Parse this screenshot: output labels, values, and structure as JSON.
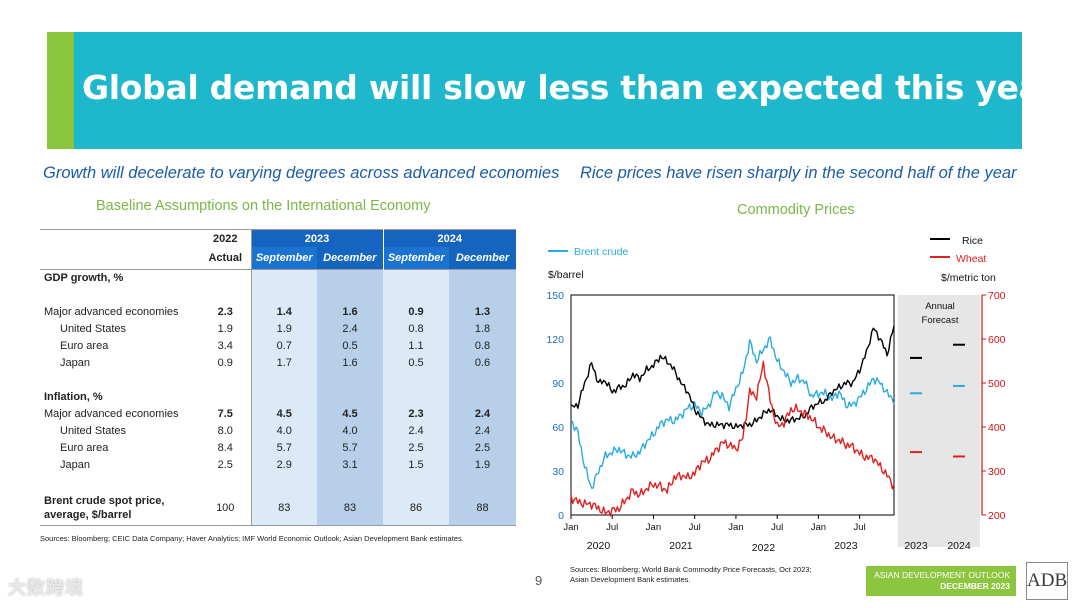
{
  "slide": {
    "title": "Global demand will slow less than expected this year",
    "left_subhead": "Growth will decelerate to varying degrees across advanced economies",
    "right_subhead": "Rice prices have risen sharply in the second half of the year",
    "page_number": "9",
    "brand_line1": "ASIAN DEVELOPMENT OUTLOOK",
    "brand_line2": "DECEMBER 2023",
    "logo": "ADB",
    "watermark": "大数跨境",
    "colors": {
      "banner": "#1fb7cc",
      "banner_accent": "#8cc63f",
      "subhead": "#1a5ca8",
      "green_title": "#7ab648",
      "table_header": "#1565c0",
      "brent": "#29abe2",
      "rice": "#000000",
      "wheat": "#e02020"
    }
  },
  "table": {
    "title": "Baseline Assumptions on the International Economy",
    "year_headers": {
      "y2022": "2022",
      "y2023": "2023",
      "y2024": "2024"
    },
    "sub_headers": {
      "actual": "Actual",
      "sep23": "September",
      "dec23": "December",
      "sep24": "September",
      "dec24": "December"
    },
    "rows": [
      {
        "label": "GDP growth, %",
        "values": [
          "",
          "",
          "",
          "",
          ""
        ]
      },
      {
        "label": "Major advanced economies",
        "values": [
          "2.3",
          "1.4",
          "1.6",
          "0.9",
          "1.3"
        ]
      },
      {
        "label": "United States",
        "values": [
          "1.9",
          "1.9",
          "2.4",
          "0.8",
          "1.8"
        ]
      },
      {
        "label": "Euro area",
        "values": [
          "3.4",
          "0.7",
          "0.5",
          "1.1",
          "0.8"
        ]
      },
      {
        "label": "Japan",
        "values": [
          "0.9",
          "1.7",
          "1.6",
          "0.5",
          "0.6"
        ]
      },
      {
        "label": "Inflation, %",
        "values": [
          "",
          "",
          "",
          "",
          ""
        ]
      },
      {
        "label": "Major advanced economies",
        "values": [
          "7.5",
          "4.5",
          "4.5",
          "2.3",
          "2.4"
        ]
      },
      {
        "label": "United States",
        "values": [
          "8.0",
          "4.0",
          "4.0",
          "2.4",
          "2.4"
        ]
      },
      {
        "label": "Euro area",
        "values": [
          "8.4",
          "5.7",
          "5.7",
          "2.5",
          "2.5"
        ]
      },
      {
        "label": "Japan",
        "values": [
          "2.5",
          "2.9",
          "3.1",
          "1.5",
          "1.9"
        ]
      },
      {
        "label": "Brent crude spot price,",
        "label2": "average, $/barrel",
        "values": [
          "100",
          "83",
          "83",
          "86",
          "88"
        ]
      }
    ],
    "source": "Sources: Bloomberg; CEIC Data Company; Haver Analytics; IMF World Economic Outlook; Asian Development Bank estimates."
  },
  "chart_data": [
    {
      "type": "table",
      "title": "Baseline Assumptions on the International Economy",
      "columns": [
        "2022 Actual",
        "2023 September",
        "2023 December",
        "2024 September",
        "2024 December"
      ],
      "rows": {
        "GDP growth, % - Major advanced economies": [
          2.3,
          1.4,
          1.6,
          0.9,
          1.3
        ],
        "GDP growth, % - United States": [
          1.9,
          1.9,
          2.4,
          0.8,
          1.8
        ],
        "GDP growth, % - Euro area": [
          3.4,
          0.7,
          0.5,
          1.1,
          0.8
        ],
        "GDP growth, % - Japan": [
          0.9,
          1.7,
          1.6,
          0.5,
          0.6
        ],
        "Inflation, % - Major advanced economies": [
          7.5,
          4.5,
          4.5,
          2.3,
          2.4
        ],
        "Inflation, % - United States": [
          8.0,
          4.0,
          4.0,
          2.4,
          2.4
        ],
        "Inflation, % - Euro area": [
          8.4,
          5.7,
          5.7,
          2.5,
          2.5
        ],
        "Inflation, % - Japan": [
          2.5,
          2.9,
          3.1,
          1.5,
          1.9
        ],
        "Brent crude spot price, average, $/barrel": [
          100,
          83,
          83,
          86,
          88
        ]
      }
    },
    {
      "type": "line",
      "title": "Commodity Prices",
      "left_axis_label": "$/barrel",
      "right_axis_label": "$/metric ton",
      "ylim_left": [
        0,
        150
      ],
      "ylim_right": [
        200,
        700
      ],
      "yticks_left": [
        "0",
        "30",
        "60",
        "90",
        "120",
        "150"
      ],
      "yticks_right": [
        "200",
        "300",
        "400",
        "500",
        "600",
        "700"
      ],
      "xticks": [
        "Jan",
        "Jul",
        "Jan",
        "Jul",
        "Jan",
        "Jul",
        "Jan",
        "Jul"
      ],
      "x_years": [
        "2020",
        "2021",
        "2022",
        "2023"
      ],
      "forecast_years": [
        "2023",
        "2024"
      ],
      "forecast_label": [
        "Annual",
        "Forecast"
      ],
      "legend": {
        "brent": "Brent crude",
        "rice": "Rice",
        "wheat": "Wheat"
      },
      "series": [
        {
          "name": "Brent crude",
          "axis": "left",
          "x": [
            "2020-01",
            "2020-02",
            "2020-03",
            "2020-04",
            "2020-05",
            "2020-06",
            "2020-07",
            "2020-08",
            "2020-09",
            "2020-10",
            "2020-11",
            "2020-12",
            "2021-01",
            "2021-02",
            "2021-03",
            "2021-04",
            "2021-05",
            "2021-06",
            "2021-07",
            "2021-08",
            "2021-09",
            "2021-10",
            "2021-11",
            "2021-12",
            "2022-01",
            "2022-02",
            "2022-03",
            "2022-04",
            "2022-05",
            "2022-06",
            "2022-07",
            "2022-08",
            "2022-09",
            "2022-10",
            "2022-11",
            "2022-12",
            "2023-01",
            "2023-02",
            "2023-03",
            "2023-04",
            "2023-05",
            "2023-06",
            "2023-07",
            "2023-08",
            "2023-09",
            "2023-10",
            "2023-11",
            "2023-12"
          ],
          "values": [
            65,
            56,
            33,
            18,
            30,
            40,
            43,
            45,
            41,
            40,
            43,
            50,
            55,
            62,
            65,
            64,
            68,
            73,
            75,
            70,
            74,
            84,
            81,
            74,
            86,
            97,
            118,
            105,
            113,
            120,
            105,
            98,
            90,
            93,
            91,
            81,
            83,
            83,
            79,
            84,
            75,
            75,
            80,
            86,
            93,
            90,
            83,
            78
          ]
        },
        {
          "name": "Rice",
          "axis": "right",
          "x": [
            "2020-01",
            "2020-02",
            "2020-03",
            "2020-04",
            "2020-05",
            "2020-06",
            "2020-07",
            "2020-08",
            "2020-09",
            "2020-10",
            "2020-11",
            "2020-12",
            "2021-01",
            "2021-02",
            "2021-03",
            "2021-04",
            "2021-05",
            "2021-06",
            "2021-07",
            "2021-08",
            "2021-09",
            "2021-10",
            "2021-11",
            "2021-12",
            "2022-01",
            "2022-02",
            "2022-03",
            "2022-04",
            "2022-05",
            "2022-06",
            "2022-07",
            "2022-08",
            "2022-09",
            "2022-10",
            "2022-11",
            "2022-12",
            "2023-01",
            "2023-02",
            "2023-03",
            "2023-04",
            "2023-05",
            "2023-06",
            "2023-07",
            "2023-08",
            "2023-09",
            "2023-10",
            "2023-11",
            "2023-12"
          ],
          "values": [
            445,
            450,
            500,
            545,
            500,
            505,
            480,
            490,
            495,
            520,
            510,
            530,
            540,
            560,
            550,
            530,
            500,
            480,
            440,
            420,
            405,
            405,
            405,
            405,
            400,
            405,
            405,
            415,
            430,
            440,
            425,
            415,
            415,
            420,
            425,
            445,
            455,
            460,
            480,
            490,
            500,
            500,
            530,
            570,
            625,
            600,
            565,
            630
          ]
        },
        {
          "name": "Wheat",
          "axis": "right",
          "x": [
            "2020-01",
            "2020-02",
            "2020-03",
            "2020-04",
            "2020-05",
            "2020-06",
            "2020-07",
            "2020-08",
            "2020-09",
            "2020-10",
            "2020-11",
            "2020-12",
            "2021-01",
            "2021-02",
            "2021-03",
            "2021-04",
            "2021-05",
            "2021-06",
            "2021-07",
            "2021-08",
            "2021-09",
            "2021-10",
            "2021-11",
            "2021-12",
            "2022-01",
            "2022-02",
            "2022-03",
            "2022-04",
            "2022-05",
            "2022-06",
            "2022-07",
            "2022-08",
            "2022-09",
            "2022-10",
            "2022-11",
            "2022-12",
            "2023-01",
            "2023-02",
            "2023-03",
            "2023-04",
            "2023-05",
            "2023-06",
            "2023-07",
            "2023-08",
            "2023-09",
            "2023-10",
            "2023-11",
            "2023-12"
          ],
          "values": [
            240,
            230,
            225,
            225,
            215,
            205,
            210,
            215,
            235,
            255,
            245,
            260,
            270,
            265,
            255,
            285,
            290,
            285,
            295,
            320,
            325,
            345,
            365,
            360,
            350,
            375,
            480,
            470,
            545,
            460,
            400,
            410,
            440,
            440,
            430,
            420,
            400,
            390,
            375,
            370,
            360,
            355,
            340,
            330,
            330,
            310,
            290,
            265
          ]
        }
      ],
      "forecasts": [
        {
          "name": "Rice",
          "axis": "right",
          "values": [
            557,
            587
          ]
        },
        {
          "name": "Brent crude",
          "axis": "left",
          "values": [
            83,
            88
          ]
        },
        {
          "name": "Wheat",
          "axis": "right",
          "values": [
            343,
            333
          ]
        }
      ],
      "source": "Sources: Bloomberg; World Bank Commodity Price Forecasts, Oct 2023; Asian Development Bank estimates.",
      "source_line1": "Sources: Bloomberg; World Bank Commodity Price Forecasts, Oct 2023;",
      "source_line2": "Asian Development Bank estimates."
    }
  ]
}
